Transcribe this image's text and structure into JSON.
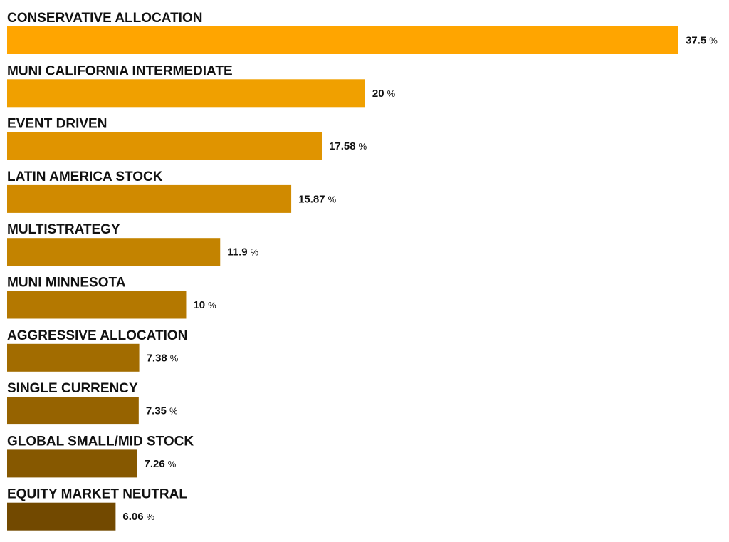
{
  "chart_data": {
    "type": "bar",
    "orientation": "horizontal",
    "categories": [
      "CONSERVATIVE ALLOCATION",
      "MUNI CALIFORNIA INTERMEDIATE",
      "EVENT DRIVEN",
      "LATIN AMERICA STOCK",
      "MULTISTRATEGY",
      "MUNI MINNESOTA",
      "AGGRESSIVE ALLOCATION",
      "SINGLE CURRENCY",
      "GLOBAL SMALL/MID STOCK",
      "EQUITY MARKET NEUTRAL"
    ],
    "values": [
      37.5,
      20,
      17.58,
      15.87,
      11.9,
      10,
      7.38,
      7.35,
      7.26,
      6.06
    ],
    "value_labels": [
      "37.5",
      "20",
      "17.58",
      "15.87",
      "11.9",
      "10",
      "7.38",
      "7.35",
      "7.26",
      "6.06"
    ],
    "unit": "%",
    "bar_colors": [
      "#FFA500",
      "#F0A000",
      "#E09400",
      "#D08A00",
      "#C38300",
      "#B47800",
      "#A26C00",
      "#966300",
      "#865800",
      "#724900"
    ],
    "grid": false,
    "legend": "none"
  }
}
